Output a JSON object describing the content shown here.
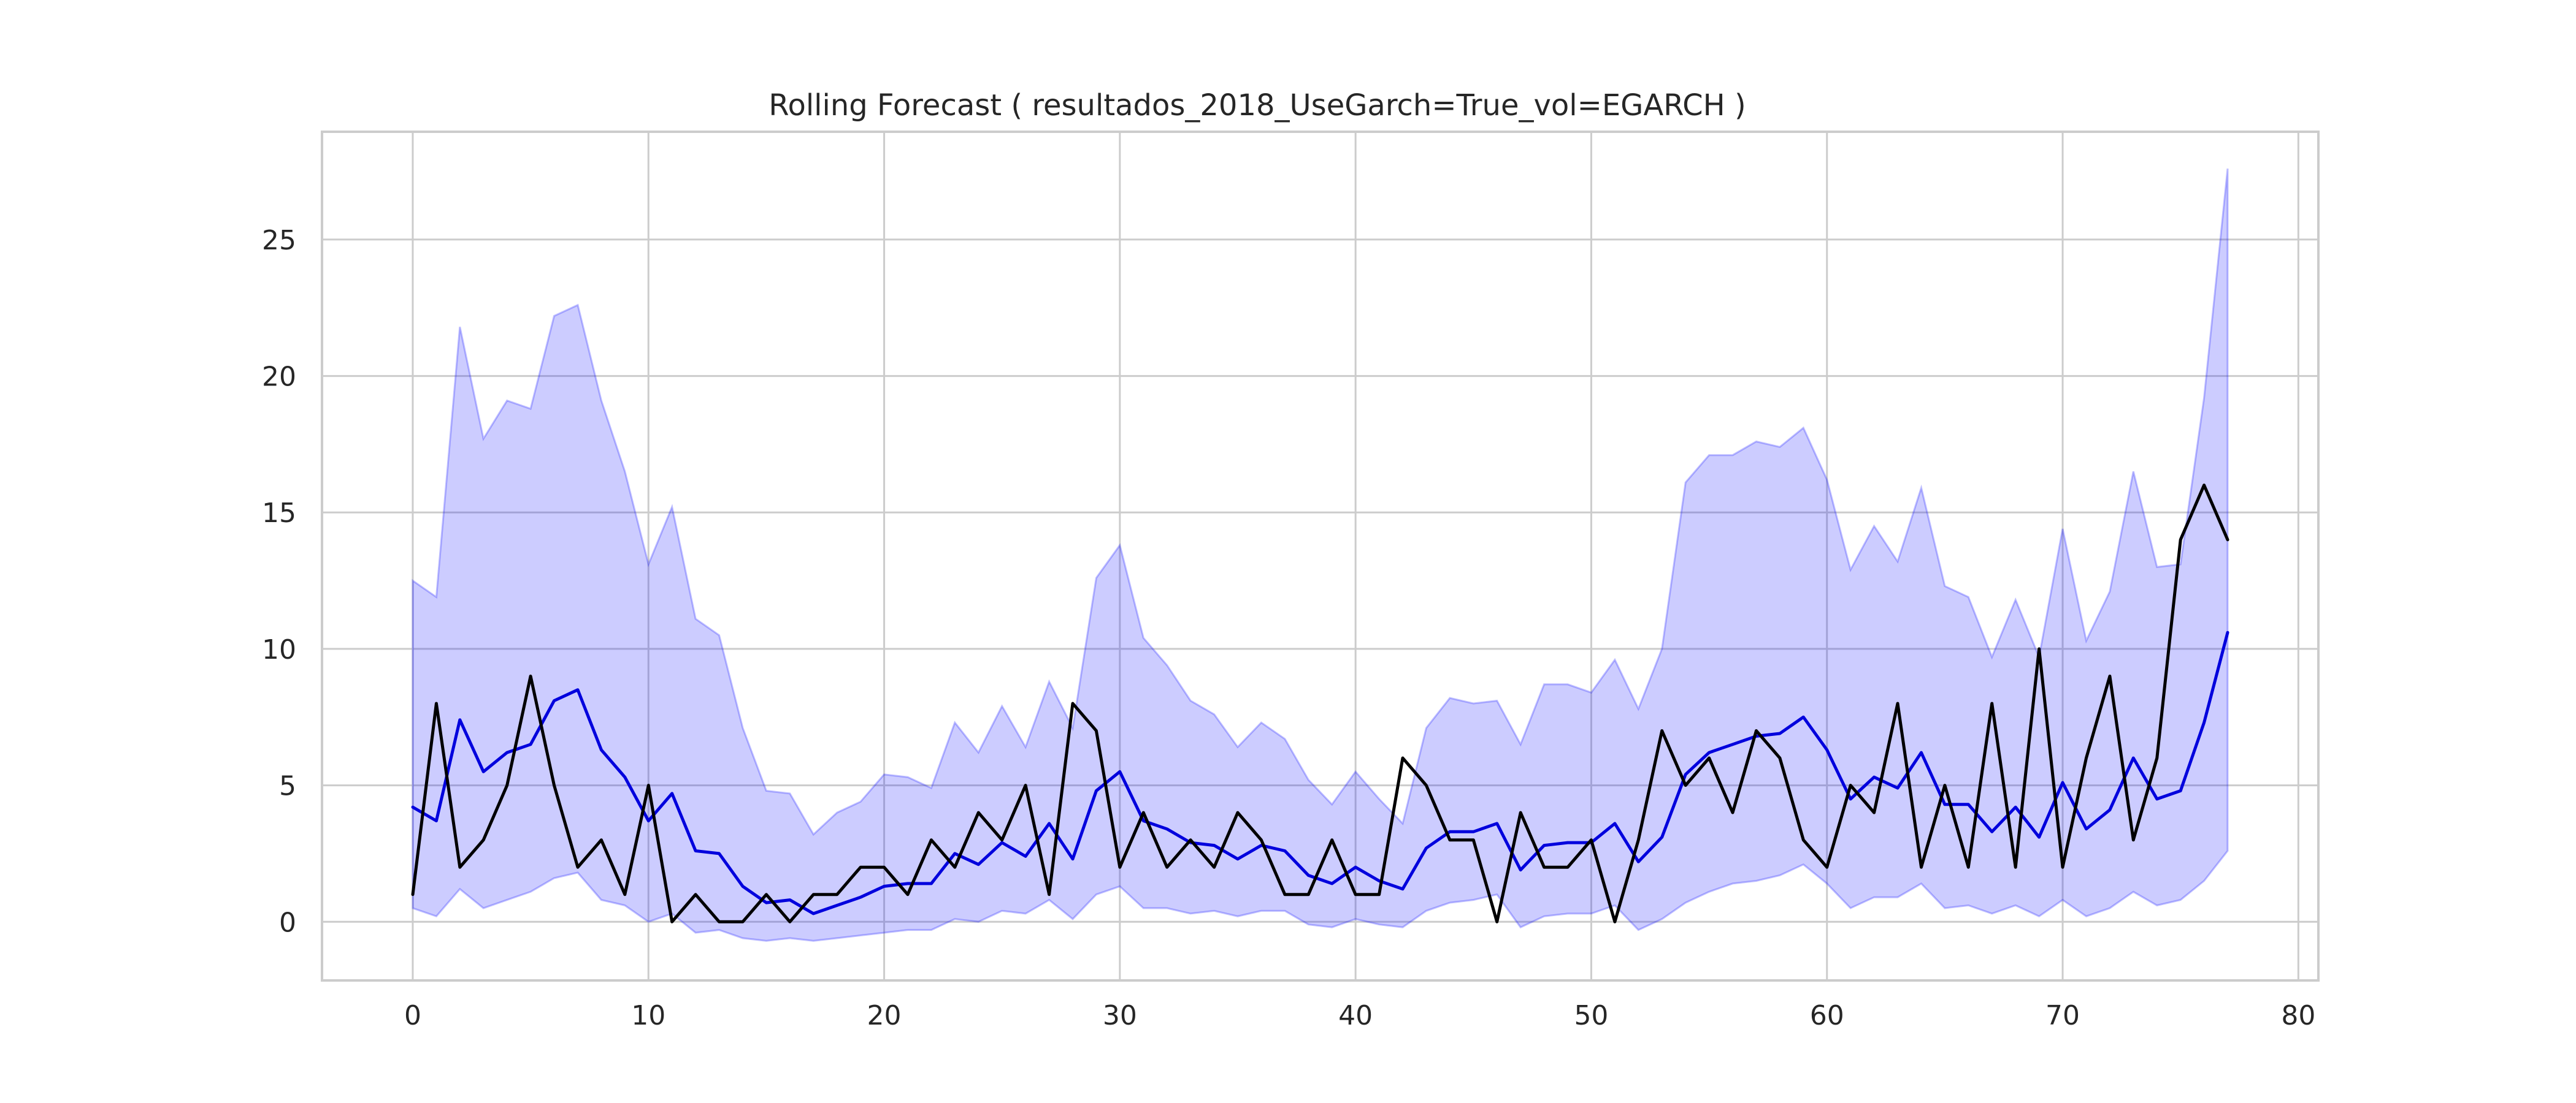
{
  "colors": {
    "background": "#ffffff",
    "grid": "#cccccc",
    "text": "#262626",
    "band_fill": "#0000ff",
    "forecast_line": "#0000dd",
    "actual_line": "#000000"
  },
  "chart_data": {
    "type": "area",
    "title": "Rolling Forecast ( resultados_2018_UseGarch=True_vol=EGARCH )",
    "xlabel": "",
    "ylabel": "",
    "xlim": [
      -3.85,
      80.85
    ],
    "ylim": [
      -2.15,
      28.95
    ],
    "x_ticks": [
      0,
      10,
      20,
      30,
      40,
      50,
      60,
      70,
      80
    ],
    "y_ticks": [
      0,
      5,
      10,
      15,
      20,
      25
    ],
    "grid": true,
    "legend": "none",
    "x": [
      0,
      1,
      2,
      3,
      4,
      5,
      6,
      7,
      8,
      9,
      10,
      11,
      12,
      13,
      14,
      15,
      16,
      17,
      18,
      19,
      20,
      21,
      22,
      23,
      24,
      25,
      26,
      27,
      28,
      29,
      30,
      31,
      32,
      33,
      34,
      35,
      36,
      37,
      38,
      39,
      40,
      41,
      42,
      43,
      44,
      45,
      46,
      47,
      48,
      49,
      50,
      51,
      52,
      53,
      54,
      55,
      56,
      57,
      58,
      59,
      60,
      61,
      62,
      63,
      64,
      65,
      66,
      67,
      68,
      69,
      70,
      71,
      72,
      73,
      74,
      75,
      76,
      77
    ],
    "band": {
      "upper": [
        12.5,
        11.9,
        21.8,
        17.7,
        19.1,
        18.8,
        22.2,
        22.6,
        19.1,
        16.5,
        13.1,
        15.2,
        11.1,
        10.5,
        7.1,
        4.8,
        4.7,
        3.2,
        4.0,
        4.4,
        5.4,
        5.3,
        4.9,
        7.3,
        6.2,
        7.9,
        6.4,
        8.8,
        7.1,
        12.6,
        13.8,
        10.4,
        9.4,
        8.1,
        7.6,
        6.4,
        7.3,
        6.7,
        5.2,
        4.3,
        5.5,
        4.5,
        3.6,
        7.1,
        8.2,
        8.0,
        8.1,
        6.5,
        8.7,
        8.7,
        8.4,
        9.6,
        7.8,
        10.0,
        16.1,
        17.1,
        17.1,
        17.6,
        17.4,
        18.1,
        16.2,
        12.9,
        14.5,
        13.2,
        15.9,
        12.3,
        11.9,
        9.7,
        11.8,
        9.7,
        14.4,
        10.3,
        12.1,
        16.5,
        13.0,
        13.1,
        19.2,
        27.6
      ],
      "lower": [
        0.5,
        0.2,
        1.2,
        0.5,
        0.8,
        1.1,
        1.6,
        1.8,
        0.8,
        0.6,
        0.0,
        0.3,
        -0.4,
        -0.3,
        -0.6,
        -0.7,
        -0.6,
        -0.7,
        -0.6,
        -0.5,
        -0.4,
        -0.3,
        -0.3,
        0.1,
        0.0,
        0.4,
        0.3,
        0.8,
        0.1,
        1.0,
        1.3,
        0.5,
        0.5,
        0.3,
        0.4,
        0.2,
        0.4,
        0.4,
        -0.1,
        -0.2,
        0.1,
        -0.1,
        -0.2,
        0.4,
        0.7,
        0.8,
        1.0,
        -0.2,
        0.2,
        0.3,
        0.3,
        0.6,
        -0.3,
        0.1,
        0.7,
        1.1,
        1.4,
        1.5,
        1.7,
        2.1,
        1.4,
        0.5,
        0.9,
        0.9,
        1.4,
        0.5,
        0.6,
        0.3,
        0.6,
        0.2,
        0.8,
        0.2,
        0.5,
        1.1,
        0.6,
        0.8,
        1.5,
        2.6
      ]
    },
    "series": [
      {
        "color": "#0000dd",
        "values": [
          4.2,
          3.7,
          7.4,
          5.5,
          6.2,
          6.5,
          8.1,
          8.5,
          6.3,
          5.3,
          3.7,
          4.7,
          2.6,
          2.5,
          1.3,
          0.7,
          0.8,
          0.3,
          0.6,
          0.9,
          1.3,
          1.4,
          1.4,
          2.5,
          2.1,
          2.9,
          2.4,
          3.6,
          2.3,
          4.8,
          5.5,
          3.7,
          3.4,
          2.9,
          2.8,
          2.3,
          2.8,
          2.6,
          1.7,
          1.4,
          2.0,
          1.5,
          1.2,
          2.7,
          3.3,
          3.3,
          3.6,
          1.9,
          2.8,
          2.9,
          2.9,
          3.6,
          2.2,
          3.1,
          5.4,
          6.2,
          6.5,
          6.8,
          6.9,
          7.5,
          6.3,
          4.5,
          5.3,
          4.9,
          6.2,
          4.3,
          4.3,
          3.3,
          4.2,
          3.1,
          5.1,
          3.4,
          4.1,
          6.0,
          4.5,
          4.8,
          7.3,
          10.6
        ]
      },
      {
        "color": "#000000",
        "values": [
          1,
          8,
          2,
          3,
          5,
          9,
          5,
          2,
          3,
          1,
          5,
          0,
          1,
          0,
          0,
          1,
          0,
          1,
          1,
          2,
          2,
          1,
          3,
          2,
          4,
          3,
          5,
          1,
          8,
          7,
          2,
          4,
          2,
          3,
          2,
          4,
          3,
          1,
          1,
          3,
          1,
          1,
          6,
          5,
          3,
          3,
          0,
          4,
          2,
          2,
          3,
          0,
          3,
          7,
          5,
          6,
          4,
          7,
          6,
          3,
          2,
          5,
          4,
          8,
          2,
          5,
          2,
          8,
          2,
          10,
          2,
          6,
          9,
          3,
          6,
          14,
          16,
          14
        ]
      }
    ]
  }
}
